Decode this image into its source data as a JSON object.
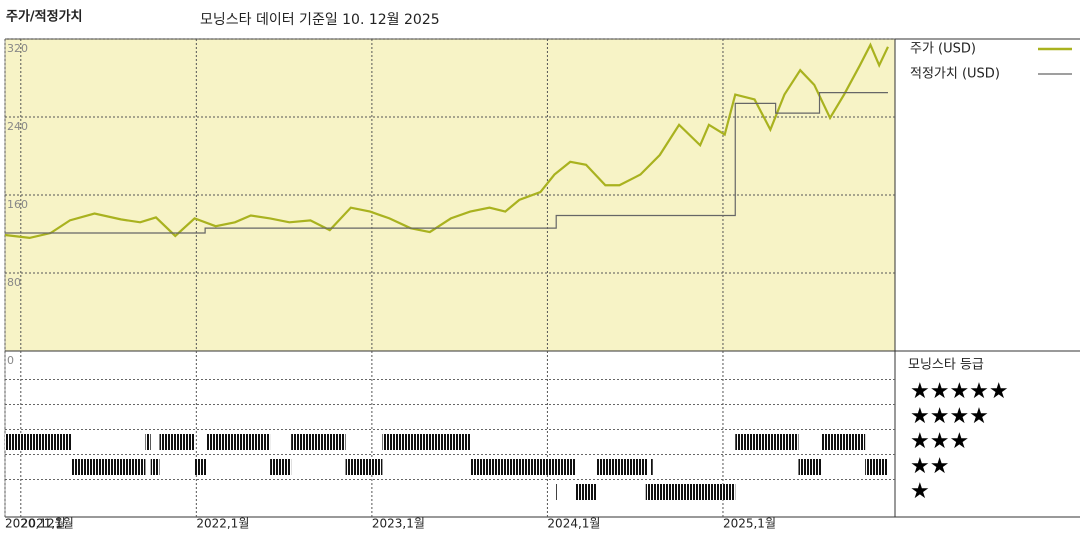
{
  "chart_data": {
    "type": "line",
    "title": "주가/적정가치",
    "subtitle": "모닝스타 데이터 기준일 10. 12월 2025",
    "xlim": [
      2020.91,
      2025.98
    ],
    "xticks": [
      {
        "value": 2020.91,
        "label": "2020,12월"
      },
      {
        "value": 2021,
        "label": "2021,1월"
      },
      {
        "value": 2022,
        "label": "2022,1월"
      },
      {
        "value": 2023,
        "label": "2023,1월"
      },
      {
        "value": 2024,
        "label": "2024,1월"
      },
      {
        "value": 2025,
        "label": "2025,1월"
      }
    ],
    "ylim": [
      0,
      320
    ],
    "yticks": [
      0,
      80,
      160,
      240,
      320
    ],
    "grid": true,
    "series": [
      {
        "name": "주가 (USD)",
        "color": "#a9b21f",
        "x": [
          2020.91,
          2021.05,
          2021.17,
          2021.28,
          2021.42,
          2021.57,
          2021.68,
          2021.77,
          2021.88,
          2021.99,
          2022.11,
          2022.22,
          2022.31,
          2022.42,
          2022.53,
          2022.65,
          2022.76,
          2022.88,
          2022.99,
          2023.1,
          2023.22,
          2023.33,
          2023.45,
          2023.56,
          2023.67,
          2023.76,
          2023.84,
          2023.96,
          2024.04,
          2024.13,
          2024.22,
          2024.33,
          2024.41,
          2024.53,
          2024.64,
          2024.75,
          2024.87,
          2024.92,
          2025.01,
          2025.07,
          2025.18,
          2025.27,
          2025.35,
          2025.44,
          2025.52,
          2025.61,
          2025.69,
          2025.78,
          2025.84,
          2025.89,
          2025.94
        ],
        "values": [
          119,
          116,
          121,
          134,
          141,
          135,
          132,
          137,
          118,
          136,
          128,
          132,
          139,
          136,
          132,
          134,
          124,
          147,
          143,
          136,
          126,
          122,
          136,
          143,
          147,
          143,
          155,
          163,
          181,
          194,
          191,
          170,
          170,
          181,
          201,
          232,
          211,
          232,
          222,
          263,
          258,
          227,
          263,
          288,
          273,
          239,
          263,
          293,
          314,
          293,
          312
        ]
      },
      {
        "name": "적정가치 (USD)",
        "color": "#666666",
        "step": true,
        "x": [
          2020.91,
          2022.05,
          2024.05,
          2025.07,
          2025.3,
          2025.55,
          2025.94
        ],
        "values": [
          121,
          126,
          139,
          254,
          244,
          265,
          265
        ]
      }
    ],
    "rating_title": "모닝스타 등급",
    "rating_labels": [
      "★★★★★",
      "★★★★",
      "★★★",
      "★★",
      "★"
    ],
    "ratings": {
      "start": [
        2020.91,
        2021.71,
        2021.79,
        2022.06,
        2022.54,
        2023.06,
        2025.07,
        2025.56,
        2021.29,
        2021.74,
        2021.99,
        2022.42,
        2022.85,
        2023.56,
        2024.28,
        2024.59,
        2025.43,
        2025.81,
        2024.05,
        2024.16,
        2024.56
      ],
      "end": [
        2021.29,
        2021.74,
        2021.99,
        2022.42,
        2022.85,
        2023.56,
        2025.43,
        2025.81,
        2021.71,
        2021.79,
        2022.06,
        2022.54,
        2023.06,
        2024.16,
        2024.57,
        2024.6,
        2025.56,
        2025.94,
        2024.06,
        2024.28,
        2025.07
      ],
      "stars": [
        3,
        3,
        3,
        3,
        3,
        3,
        3,
        3,
        2,
        2,
        2,
        2,
        2,
        2,
        2,
        2,
        2,
        2,
        1,
        1,
        1
      ]
    }
  }
}
